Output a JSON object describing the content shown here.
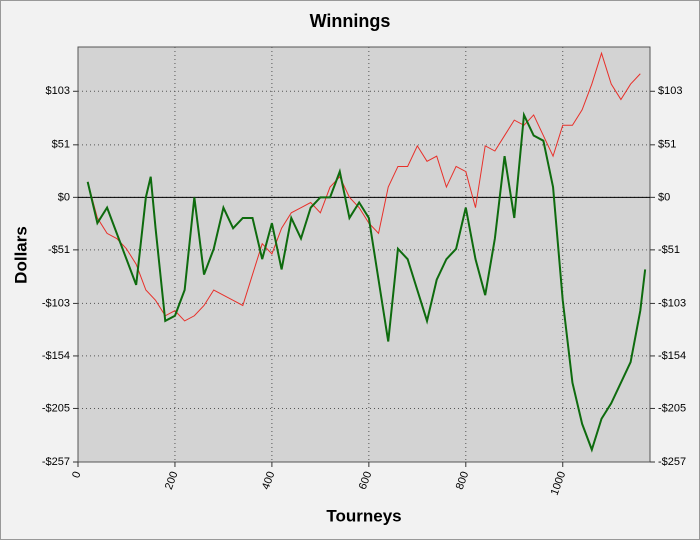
{
  "chart_data": {
    "type": "line",
    "title": "Winnings",
    "xlabel": "Tourneys",
    "ylabel": "Dollars",
    "xlim": [
      0,
      1180
    ],
    "ylim": [
      -257,
      146
    ],
    "xticks": [
      0,
      200,
      400,
      600,
      800,
      1000
    ],
    "yticks": [
      {
        "value": 103,
        "label": "$103"
      },
      {
        "value": 51,
        "label": "$51"
      },
      {
        "value": 0,
        "label": "$0"
      },
      {
        "value": -51,
        "label": "-$51"
      },
      {
        "value": -103,
        "label": "-$103"
      },
      {
        "value": -154,
        "label": "-$154"
      },
      {
        "value": -205,
        "label": "-$205"
      },
      {
        "value": -257,
        "label": "-$257"
      }
    ],
    "grid": true,
    "series": [
      {
        "name": "Red",
        "color": "#e8302a",
        "x": [
          20,
          40,
          60,
          80,
          100,
          120,
          140,
          160,
          180,
          200,
          220,
          240,
          260,
          280,
          300,
          320,
          340,
          360,
          380,
          400,
          420,
          440,
          460,
          480,
          500,
          520,
          540,
          560,
          580,
          600,
          620,
          640,
          660,
          680,
          700,
          720,
          740,
          760,
          780,
          800,
          820,
          840,
          860,
          880,
          900,
          920,
          940,
          960,
          980,
          1000,
          1020,
          1040,
          1060,
          1080,
          1100,
          1120,
          1140,
          1160
        ],
        "values": [
          15,
          -20,
          -35,
          -40,
          -50,
          -65,
          -90,
          -100,
          -115,
          -110,
          -120,
          -115,
          -105,
          -90,
          -95,
          -100,
          -105,
          -75,
          -45,
          -55,
          -30,
          -15,
          -10,
          -5,
          -15,
          10,
          20,
          0,
          -10,
          -25,
          -35,
          10,
          30,
          30,
          50,
          35,
          40,
          10,
          30,
          25,
          -10,
          50,
          45,
          60,
          75,
          70,
          80,
          60,
          40,
          70,
          70,
          85,
          110,
          140,
          110,
          95,
          110,
          120
        ]
      },
      {
        "name": "Green",
        "color": "#0e6b0e",
        "x": [
          20,
          40,
          60,
          80,
          100,
          120,
          140,
          150,
          160,
          180,
          200,
          220,
          240,
          260,
          280,
          300,
          320,
          340,
          360,
          380,
          400,
          420,
          440,
          460,
          480,
          500,
          520,
          540,
          560,
          580,
          600,
          620,
          640,
          660,
          680,
          700,
          720,
          740,
          760,
          780,
          800,
          820,
          840,
          860,
          880,
          900,
          920,
          940,
          960,
          980,
          1000,
          1020,
          1040,
          1060,
          1080,
          1100,
          1120,
          1140,
          1160,
          1170
        ],
        "values": [
          15,
          -25,
          -10,
          -35,
          -60,
          -85,
          0,
          20,
          -30,
          -120,
          -115,
          -90,
          0,
          -75,
          -50,
          -10,
          -30,
          -20,
          -20,
          -60,
          -25,
          -70,
          -20,
          -40,
          -10,
          0,
          0,
          25,
          -20,
          -5,
          -20,
          -80,
          -140,
          -50,
          -60,
          -90,
          -120,
          -80,
          -60,
          -50,
          -10,
          -60,
          -95,
          -40,
          40,
          -20,
          80,
          60,
          55,
          10,
          -100,
          -180,
          -220,
          -245,
          -215,
          -200,
          -180,
          -160,
          -110,
          -70
        ]
      }
    ]
  }
}
